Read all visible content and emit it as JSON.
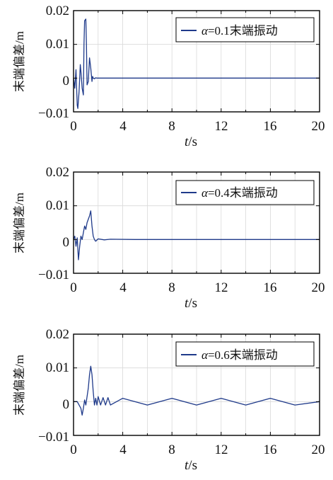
{
  "chart_data": [
    {
      "type": "line",
      "ylabel": "末端偏差/m",
      "xlabel_italic": "t",
      "xlabel_unit": "/s",
      "xlim": [
        0,
        20
      ],
      "ylim": [
        -0.01,
        0.02
      ],
      "xticks": [
        "0",
        "4",
        "8",
        "12",
        "16",
        "20"
      ],
      "xtick_values": [
        0,
        4,
        8,
        12,
        16,
        20
      ],
      "yticks": [
        "0.02",
        "0.01",
        "0",
        "−0.01"
      ],
      "ytick_values": [
        0.02,
        0.01,
        0,
        -0.01
      ],
      "grid": true,
      "legend_position": "top-right",
      "series": [
        {
          "name_symbol": "α",
          "name_rest": "=0.1末端振动",
          "color": "#1f3a8a",
          "x": [
            0,
            0.1,
            0.2,
            0.3,
            0.35,
            0.45,
            0.55,
            0.6,
            0.7,
            0.8,
            0.85,
            0.9,
            1.0,
            1.05,
            1.1,
            1.2,
            1.3,
            1.4,
            1.5,
            1.55,
            1.6,
            1.7,
            1.8,
            1.9,
            2.0,
            2.5,
            3,
            5,
            10,
            15,
            20
          ],
          "y": [
            0,
            -0.003,
            0.0025,
            -0.008,
            -0.009,
            -0.004,
            0.004,
            0.002,
            -0.003,
            -0.005,
            0.01,
            0.017,
            0.0175,
            0.01,
            -0.002,
            -0.001,
            0.006,
            0.003,
            -0.001,
            0.0005,
            0.0,
            -0.0002,
            0.0001,
            0.0,
            0.0,
            0.0,
            0.0,
            0.0,
            0.0,
            0.0,
            0.0
          ]
        }
      ]
    },
    {
      "type": "line",
      "ylabel": "末端偏差/m",
      "xlabel_italic": "t",
      "xlabel_unit": "/s",
      "xlim": [
        0,
        20
      ],
      "ylim": [
        -0.01,
        0.02
      ],
      "xticks": [
        "0",
        "4",
        "8",
        "12",
        "16",
        "20"
      ],
      "xtick_values": [
        0,
        4,
        8,
        12,
        16,
        20
      ],
      "yticks": [
        "0.02",
        "0.01",
        "0",
        "−0.01"
      ],
      "ytick_values": [
        0.02,
        0.01,
        0,
        -0.01
      ],
      "grid": true,
      "legend_position": "top-right",
      "series": [
        {
          "name_symbol": "α",
          "name_rest": "=0.4末端振动",
          "color": "#1f3a8a",
          "x": [
            0,
            0.1,
            0.2,
            0.3,
            0.4,
            0.5,
            0.6,
            0.7,
            0.8,
            0.9,
            1.0,
            1.1,
            1.2,
            1.3,
            1.4,
            1.5,
            1.6,
            1.7,
            1.8,
            2.0,
            2.5,
            3,
            5,
            10,
            15,
            20
          ],
          "y": [
            0,
            0.001,
            -0.002,
            0.0005,
            -0.006,
            -0.002,
            0.001,
            0.0,
            0.002,
            0.004,
            0.003,
            0.005,
            0.006,
            0.007,
            0.0085,
            0.004,
            0.001,
            0.0,
            -0.0005,
            0.0002,
            -0.0001,
            0.0001,
            0.0,
            0.0,
            0.0,
            0.0
          ]
        }
      ]
    },
    {
      "type": "line",
      "ylabel": "末端偏差/m",
      "xlabel_italic": "t",
      "xlabel_unit": "/s",
      "xlim": [
        0,
        20
      ],
      "ylim": [
        -0.01,
        0.02
      ],
      "xticks": [
        "0",
        "4",
        "8",
        "12",
        "16",
        "20"
      ],
      "xtick_values": [
        0,
        4,
        8,
        12,
        16,
        20
      ],
      "yticks": [
        "0.02",
        "0.01",
        "0",
        "−0.01"
      ],
      "ytick_values": [
        0.02,
        0.01,
        0,
        -0.01
      ],
      "grid": true,
      "legend_position": "top-right",
      "series": [
        {
          "name_symbol": "α",
          "name_rest": "=0.6末端振动",
          "color": "#1f3a8a",
          "x": [
            0,
            0.3,
            0.6,
            0.7,
            0.8,
            0.9,
            1.0,
            1.1,
            1.2,
            1.3,
            1.4,
            1.5,
            1.6,
            1.7,
            1.8,
            1.9,
            2.0,
            2.2,
            2.4,
            2.6,
            2.8,
            3.0,
            4,
            6,
            8,
            10,
            12,
            14,
            16,
            18,
            20
          ],
          "y": [
            0,
            0,
            -0.002,
            -0.004,
            -0.002,
            0.0005,
            -0.001,
            0.0015,
            0.004,
            0.008,
            0.0105,
            0.008,
            0.003,
            -0.001,
            0.001,
            -0.001,
            0.0015,
            -0.001,
            0.0012,
            -0.001,
            0.0012,
            -0.001,
            0.001,
            -0.001,
            0.001,
            -0.001,
            0.001,
            -0.001,
            0.001,
            -0.001,
            0.0
          ]
        }
      ]
    }
  ]
}
